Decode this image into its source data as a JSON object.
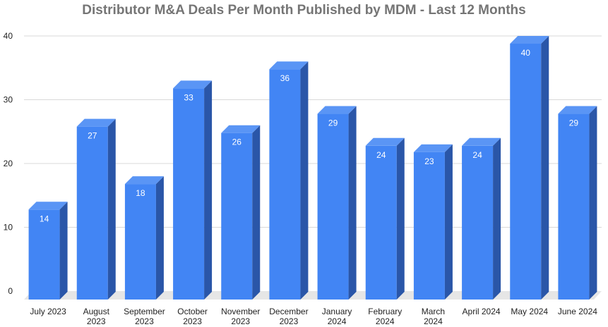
{
  "chart_data": {
    "type": "bar",
    "title": "Distributor M&A Deals Per Month Published by MDM - Last 12 Months",
    "xlabel": "",
    "ylabel": "",
    "categories": [
      [
        "July 2023"
      ],
      [
        "August",
        "2023"
      ],
      [
        "September",
        "2023"
      ],
      [
        "October",
        "2023"
      ],
      [
        "November",
        "2023"
      ],
      [
        "December",
        "2023"
      ],
      [
        "January",
        "2024"
      ],
      [
        "February",
        "2024"
      ],
      [
        "March",
        "2024"
      ],
      [
        "April 2024"
      ],
      [
        "May 2024"
      ],
      [
        "June 2024"
      ]
    ],
    "values": [
      14,
      27,
      18,
      33,
      26,
      36,
      29,
      24,
      23,
      24,
      40,
      29
    ],
    "ylim": [
      0,
      40
    ],
    "yticks": [
      0,
      10,
      20,
      30,
      40
    ],
    "grid": true,
    "legend": "none",
    "colors": {
      "front": "#4285f4",
      "top": "#5a95f5",
      "side": "#2a56a8",
      "floor": "#e6e6e6"
    }
  }
}
